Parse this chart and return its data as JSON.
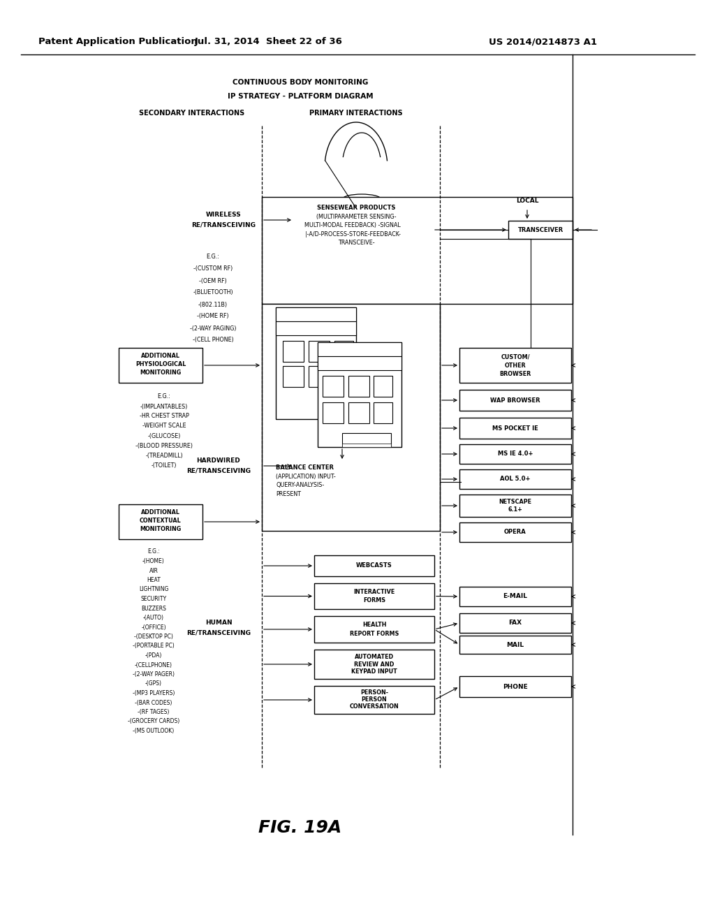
{
  "header_left": "Patent Application Publication",
  "header_mid": "Jul. 31, 2014  Sheet 22 of 36",
  "header_right": "US 2014/0214873 A1",
  "title1": "CONTINUOUS BODY MONITORING",
  "title2": "IP STRATEGY - PLATFORM DIAGRAM",
  "label_secondary": "SECONDARY INTERACTIONS",
  "label_primary": "PRIMARY INTERACTIONS",
  "figure_label": "FIG. 19A",
  "bg_color": "#ffffff",
  "text_color": "#000000",
  "eg_wireless": [
    "E.G.:",
    "-(CUSTOM RF)",
    "-(OEM RF)",
    "-(BLUETOOTH)",
    "-(802.11B)",
    "-(HOME RF)",
    "-(2-WAY PAGING)",
    "-(CELL PHONE)"
  ],
  "eg_physio": [
    "E.G.:",
    "-(IMPLANTABLES)",
    "-HR CHEST STRAP",
    "-WEIGHT SCALE",
    "-(GLUCOSE)",
    "-(BLOOD PRESSURE)",
    "-(TREADMILL)",
    "-(TOILET)"
  ],
  "eg_ctx": [
    "E.G.:",
    "-(HOME)",
    "AIR",
    "HEAT",
    "LIGHTNING",
    "SECURITY",
    "BUZZERS",
    "-(AUTO)",
    "-(OFFICE)",
    "-(DESKTOP PC)",
    "-(PORTABLE PC)",
    "-(PDA)",
    "-(CELLPHONE)",
    "-(2-WAY PAGER)",
    "-(GPS)",
    "-(MP3 PLAYERS)",
    "-(BAR CODES)",
    "-(RF TAGES)",
    "-(GROCERY CARDS)",
    "-(MS OUTLOOK)"
  ],
  "right_browsers": [
    {
      "label": "CUSTOM/\nOTHER\nBROWSER"
    },
    {
      "label": "WAP BROWSER"
    },
    {
      "label": "MS POCKET IE"
    },
    {
      "label": "MS IE 4.0+"
    },
    {
      "label": "AOL 5.0+"
    },
    {
      "label": "NETSCAPE\n6.1+"
    },
    {
      "label": "OPERA"
    }
  ],
  "mid_boxes": [
    {
      "label": "WEBCASTS"
    },
    {
      "label": "INTERACTIVE\nFORMS"
    },
    {
      "label": "HEALTH\nREPORT FORMS"
    },
    {
      "label": "AUTOMATED\nREVIEW AND\nKEYPAD INPUT"
    },
    {
      "label": "PERSON-\nPERSON\nCONVERSATION"
    }
  ],
  "far_right": [
    {
      "label": "E-MAIL"
    },
    {
      "label": "FAX"
    },
    {
      "label": "MAIL"
    },
    {
      "label": "PHONE"
    }
  ]
}
